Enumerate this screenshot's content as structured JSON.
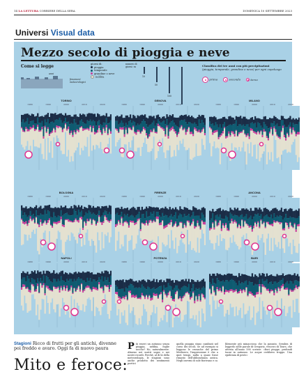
{
  "header": {
    "page_num": "14",
    "brand": "LA LETTURA",
    "paper": "CORRIERE DELLA SERA",
    "date": "DOMENICA 10 SETTEMBRE 2023"
  },
  "section": {
    "left": "Universi",
    "right": "Visual data"
  },
  "infographic": {
    "title": "Mezzo secolo di pioggia e neve",
    "how_to_read": {
      "heading": "Come si legge",
      "axis_label": "anni",
      "phenomena_label": "fenomeni meteorologici",
      "days_label": "giorni di:",
      "items": [
        {
          "name": "pioggia",
          "color": "#1a2c46"
        },
        {
          "name": "temporale",
          "color": "#0e5a70"
        },
        {
          "name": "grandine o neve",
          "color": "#c9409b"
        },
        {
          "name": "nebbia",
          "color": "#e4e1d0"
        }
      ],
      "scale_title": "numero di giorni: ra",
      "scale_values": [
        "10",
        "50",
        "100",
        "150"
      ]
    },
    "ranking": {
      "heading": "Classifica dei tre anni con più precipitazioni",
      "sub": "(pioggia, temporale, grandine o neve) per ogni capoluogo",
      "labels": [
        "primo",
        "secondo",
        "terzo"
      ]
    },
    "year_ticks": [
      "1980",
      "1990",
      "2000",
      "2010",
      "2020"
    ],
    "cities": [
      "TORINO",
      "GENOVA",
      "MILANO",
      "BOLOGNA",
      "FIRENZE",
      "ANCONA",
      "NAPOLI",
      "POTENZA",
      "BARI"
    ]
  },
  "article": {
    "kicker_label": "Stagioni",
    "kicker_text": "Ricco di frutti per gli antichi, divenne poi freddo e avaro. Oggi fa di nuovo paura",
    "headline": "Mito e feroce:",
    "col1": "iù esseri un autunno senza pioggia, nebbia, foglie secche? No, naturalmente. Almeno nei nostri sogni e nei nostri ricordi. Perché, al di là della meteorologia, le stagioni sono anche prodotto dei sentimenti poetici",
    "col2": "quella pioggia stano cambiati nel corso dei secoli. Se ad esempio si leggono le cronache del primo Medioevo, l'impressione è che a quei tempi, nulla a quasi fosse rimasto dell'abbondanza antica. Negli inverni di sole fiorivano e ca",
    "col3": "blemente più minacciosa che la passato. Sembra di leggerlo nelle parole di Gregorio, vescovo di Tours, che attesta all'anno 590 scrisse: «fiori piogge, profondi tuoni in autunno. Le acque crebbero troppo. Una epidemia di peste»"
  }
}
